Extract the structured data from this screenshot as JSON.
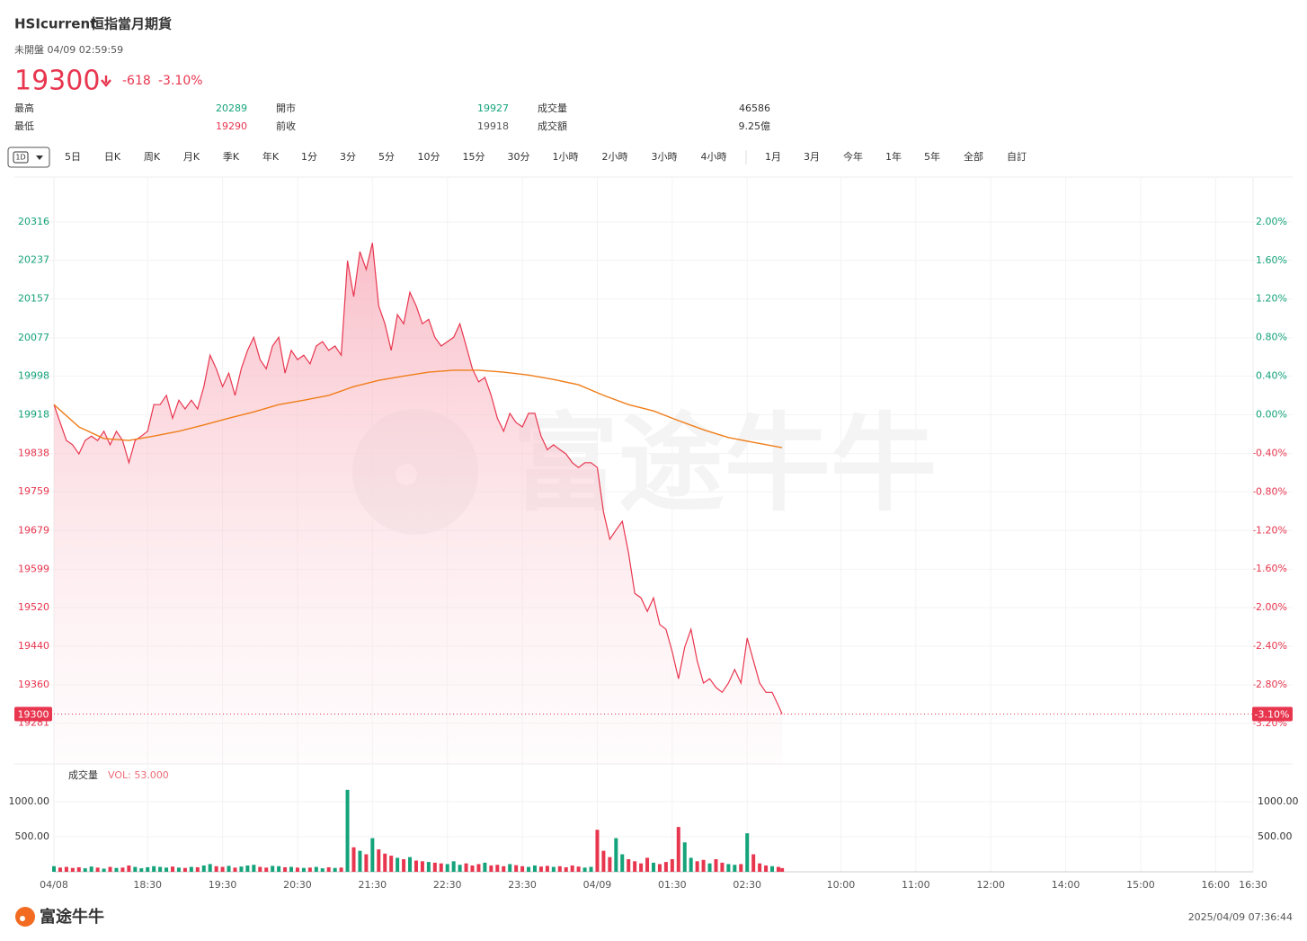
{
  "header": {
    "symbol": "HSIcurrent",
    "name": "恒指當月期貨",
    "status": "未開盤 04/09 02:59:59",
    "price": 19300,
    "change": -618,
    "change_pct": "-3.10%",
    "stats": [
      [
        {
          "label": "最高",
          "value": 20289
        },
        {
          "label": "開市",
          "value": 19927
        },
        {
          "label": "成交量",
          "value": 46586
        }
      ],
      [
        {
          "label": "最低",
          "value": 19290
        },
        {
          "label": "前收",
          "value": 19918
        },
        {
          "label": "成交額",
          "value": "9.25億"
        }
      ]
    ]
  },
  "tabs": [
    "1D",
    "5日",
    "日K",
    "周K",
    "月K",
    "季K",
    "年K",
    "1分",
    "3分",
    "5分",
    "10分",
    "15分",
    "30分",
    "1小時",
    "2小時",
    "3小時",
    "4小時",
    "1月",
    "3月",
    "今年",
    "1年",
    "5年",
    "全部",
    "自訂"
  ],
  "watermark": "富途牛牛",
  "footer": {
    "brand": "富途牛牛",
    "timestamp": "2025/04/09 07:36:44"
  },
  "chart_data": [
    {
      "type": "line",
      "grid": true,
      "xlim": [
        0,
        960
      ],
      "xticks": [
        {
          "value": 0,
          "label": "04/08"
        },
        {
          "value": 75,
          "label": "18:30"
        },
        {
          "value": 135,
          "label": "19:30"
        },
        {
          "value": 195,
          "label": "20:30"
        },
        {
          "value": 255,
          "label": "21:30"
        },
        {
          "value": 315,
          "label": "22:30"
        },
        {
          "value": 375,
          "label": "23:30"
        },
        {
          "value": 435,
          "label": "04/09"
        },
        {
          "value": 495,
          "label": "01:30"
        },
        {
          "value": 555,
          "label": "02:30"
        },
        {
          "value": 630,
          "label": "10:00"
        },
        {
          "value": 690,
          "label": "11:00"
        },
        {
          "value": 750,
          "label": "12:00"
        },
        {
          "value": 810,
          "label": "14:00"
        },
        {
          "value": 870,
          "label": "15:00"
        },
        {
          "value": 930,
          "label": "16:00"
        },
        {
          "value": 960,
          "label": "16:30"
        }
      ],
      "ylim": [
        19197,
        20407
      ],
      "yticks": [
        20316,
        20237,
        20157,
        20077,
        19998,
        19918,
        19838,
        19759,
        19679,
        19599,
        19520,
        19440,
        19360,
        19281
      ],
      "y2lim": [
        -3.62,
        2.455
      ],
      "y2ticks": [
        {
          "value": 2,
          "label": "2.00%"
        },
        {
          "value": 1.6,
          "label": "1.60%"
        },
        {
          "value": 1.2,
          "label": "1.20%"
        },
        {
          "value": 0.8,
          "label": "0.80%"
        },
        {
          "value": 0.4,
          "label": "0.40%"
        },
        {
          "value": 0,
          "label": "0.00%"
        },
        {
          "value": -0.4,
          "label": "-0.40%"
        },
        {
          "value": -0.8,
          "label": "-0.80%"
        },
        {
          "value": -1.2,
          "label": "-1.20%"
        },
        {
          "value": -1.6,
          "label": "-1.60%"
        },
        {
          "value": -2,
          "label": "-2.00%"
        },
        {
          "value": -2.4,
          "label": "-2.40%"
        },
        {
          "value": -2.8,
          "label": "-2.80%"
        },
        {
          "value": -3.2,
          "label": "-3.20%"
        }
      ],
      "series": [
        {
          "color": "#e8364f",
          "x": [
            0,
            5,
            10,
            15,
            20,
            25,
            30,
            35,
            40,
            45,
            50,
            55,
            60,
            65,
            70,
            75,
            80,
            85,
            90,
            95,
            100,
            105,
            110,
            115,
            120,
            125,
            130,
            135,
            140,
            145,
            150,
            155,
            160,
            165,
            170,
            175,
            180,
            185,
            190,
            195,
            200,
            205,
            210,
            215,
            220,
            225,
            230,
            235,
            240,
            245,
            250,
            255,
            260,
            265,
            270,
            275,
            280,
            285,
            290,
            295,
            300,
            305,
            310,
            315,
            320,
            325,
            330,
            335,
            340,
            345,
            350,
            355,
            360,
            365,
            370,
            375,
            380,
            385,
            390,
            395,
            400,
            405,
            410,
            415,
            420,
            425,
            430,
            435,
            440,
            445,
            450,
            455,
            460,
            465,
            470,
            475,
            480,
            485,
            490,
            495,
            500,
            505,
            510,
            515,
            520,
            525,
            530,
            535,
            540,
            545,
            550,
            555,
            560,
            565,
            570,
            575,
            580,
            583
          ],
          "values": [
            19939,
            19902,
            19865,
            19856,
            19837,
            19865,
            19874,
            19865,
            19884,
            19856,
            19884,
            19865,
            19819,
            19865,
            19874,
            19884,
            19939,
            19939,
            19958,
            19911,
            19948,
            19930,
            19948,
            19930,
            19976,
            20041,
            20013,
            19976,
            20004,
            19958,
            20013,
            20051,
            20078,
            20032,
            20013,
            20060,
            20078,
            20004,
            20051,
            20032,
            20041,
            20023,
            20060,
            20069,
            20051,
            20060,
            20041,
            20236,
            20162,
            20255,
            20218,
            20273,
            20143,
            20106,
            20051,
            20125,
            20106,
            20171,
            20143,
            20106,
            20115,
            20078,
            20060,
            20069,
            20078,
            20106,
            20060,
            20013,
            19986,
            19995,
            19958,
            19911,
            19884,
            19921,
            19902,
            19893,
            19921,
            19921,
            19874,
            19846,
            19856,
            19846,
            19837,
            19819,
            19809,
            19819,
            19819,
            19809,
            19717,
            19661,
            19680,
            19698,
            19633,
            19549,
            19540,
            19512,
            19540,
            19485,
            19475,
            19429,
            19373,
            19438,
            19475,
            19410,
            19364,
            19373,
            19355,
            19345,
            19364,
            19392,
            19364,
            19457,
            19410,
            19364,
            19345,
            19345,
            19317,
            19300
          ]
        },
        {
          "color": "#f07d1a",
          "x": [
            0,
            20,
            40,
            60,
            80,
            100,
            120,
            140,
            160,
            180,
            200,
            220,
            240,
            260,
            280,
            300,
            320,
            340,
            360,
            380,
            400,
            420,
            440,
            460,
            480,
            500,
            520,
            540,
            560,
            583
          ],
          "values": [
            19939,
            19893,
            19869,
            19865,
            19874,
            19884,
            19897,
            19911,
            19924,
            19939,
            19948,
            19958,
            19976,
            19989,
            19998,
            20006,
            20010,
            20010,
            20006,
            20000,
            19991,
            19980,
            19958,
            19939,
            19926,
            19906,
            19887,
            19871,
            19861,
            19850
          ]
        }
      ]
    },
    {
      "type": "bar",
      "title": "成交量",
      "subtitle": "VOL: 53.000",
      "up_color": "#14a37a",
      "down_color": "#e8364f",
      "ylim": [
        0,
        1540
      ],
      "yticks": [
        {
          "value": 1000,
          "label": "1000.00"
        },
        {
          "value": 500,
          "label": "500.00"
        }
      ],
      "x": [
        0,
        5,
        10,
        15,
        20,
        25,
        30,
        35,
        40,
        45,
        50,
        55,
        60,
        65,
        70,
        75,
        80,
        85,
        90,
        95,
        100,
        105,
        110,
        115,
        120,
        125,
        130,
        135,
        140,
        145,
        150,
        155,
        160,
        165,
        170,
        175,
        180,
        185,
        190,
        195,
        200,
        205,
        210,
        215,
        220,
        225,
        230,
        235,
        240,
        245,
        250,
        255,
        260,
        265,
        270,
        275,
        280,
        285,
        290,
        295,
        300,
        305,
        310,
        315,
        320,
        325,
        330,
        335,
        340,
        345,
        350,
        355,
        360,
        365,
        370,
        375,
        380,
        385,
        390,
        395,
        400,
        405,
        410,
        415,
        420,
        425,
        430,
        435,
        440,
        445,
        450,
        455,
        460,
        465,
        470,
        475,
        480,
        485,
        490,
        495,
        500,
        505,
        510,
        515,
        520,
        525,
        530,
        535,
        540,
        545,
        550,
        555,
        560,
        565,
        570,
        575,
        580,
        583
      ],
      "values": [
        80,
        60,
        70,
        55,
        65,
        50,
        75,
        60,
        45,
        70,
        55,
        60,
        90,
        70,
        50,
        65,
        80,
        70,
        60,
        75,
        60,
        55,
        70,
        65,
        90,
        110,
        80,
        70,
        85,
        60,
        75,
        90,
        100,
        70,
        60,
        85,
        80,
        65,
        70,
        60,
        55,
        60,
        70,
        50,
        65,
        55,
        60,
        1170,
        350,
        300,
        250,
        480,
        320,
        260,
        230,
        200,
        180,
        210,
        160,
        150,
        140,
        130,
        120,
        110,
        150,
        100,
        120,
        90,
        110,
        130,
        90,
        100,
        80,
        110,
        95,
        80,
        70,
        90,
        75,
        85,
        70,
        80,
        65,
        90,
        75,
        60,
        70,
        600,
        300,
        210,
        480,
        250,
        180,
        150,
        120,
        200,
        130,
        110,
        140,
        180,
        640,
        420,
        200,
        150,
        170,
        120,
        180,
        130,
        110,
        100,
        110,
        550,
        250,
        120,
        90,
        80,
        70,
        53
      ]
    }
  ]
}
